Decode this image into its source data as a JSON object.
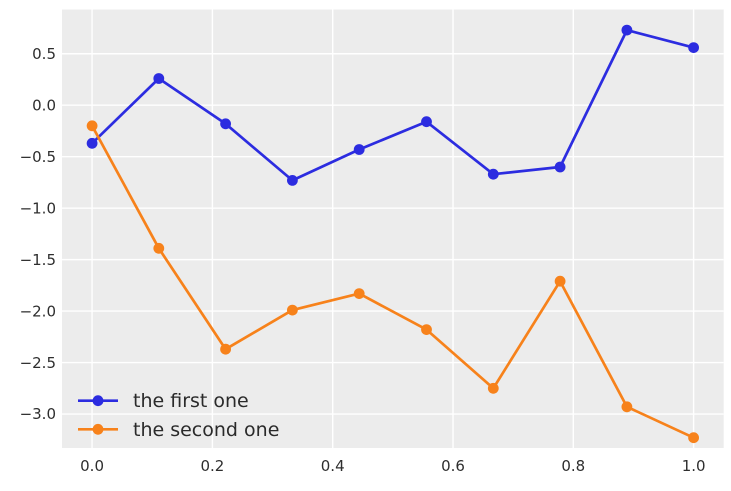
{
  "chart_data": {
    "type": "line",
    "x": [
      0.0,
      0.111,
      0.222,
      0.333,
      0.444,
      0.556,
      0.667,
      0.778,
      0.889,
      1.0
    ],
    "series": [
      {
        "name": "the first one",
        "color": "#2c2ce0",
        "values": [
          -0.37,
          0.26,
          -0.18,
          -0.73,
          -0.43,
          -0.16,
          -0.67,
          -0.6,
          0.73,
          0.56
        ]
      },
      {
        "name": "the second one",
        "color": "#f7821b",
        "values": [
          -0.2,
          -1.39,
          -2.37,
          -1.99,
          -1.83,
          -2.18,
          -2.75,
          -1.71,
          -2.93,
          -3.23
        ]
      }
    ],
    "title": "",
    "xlabel": "",
    "ylabel": "",
    "xtick_labels": [
      "0.0",
      "0.2",
      "0.4",
      "0.6",
      "0.8",
      "1.0"
    ],
    "xtick_values": [
      0.0,
      0.2,
      0.4,
      0.6,
      0.8,
      1.0
    ],
    "ytick_labels": [
      "0.5",
      "0.0",
      "−0.5",
      "−1.0",
      "−1.5",
      "−2.0",
      "−2.5",
      "−3.0"
    ],
    "ytick_values": [
      0.5,
      0.0,
      -0.5,
      -1.0,
      -1.5,
      -2.0,
      -2.5,
      -3.0
    ],
    "xlim": [
      -0.05,
      1.05
    ],
    "ylim": [
      -3.33,
      0.93
    ],
    "grid": true,
    "legend": {
      "position": "lower left",
      "frame": false,
      "entries": [
        "the first one",
        "the second one"
      ]
    },
    "colors": {
      "plot_background": "#ececec",
      "figure_background": "#ffffff",
      "gridline": "#ffffff",
      "tick_text": "#2e2e2e",
      "legend_text": "#2a2a2a"
    }
  }
}
